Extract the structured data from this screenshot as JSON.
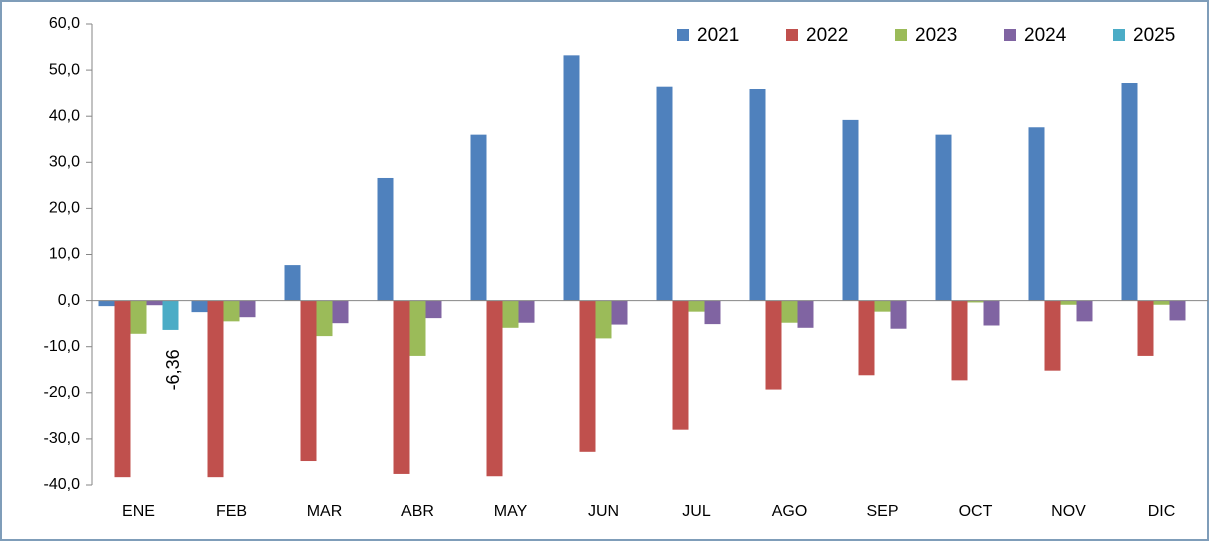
{
  "chart_data": {
    "type": "bar",
    "categories": [
      "ENE",
      "FEB",
      "MAR",
      "ABR",
      "MAY",
      "JUN",
      "JUL",
      "AGO",
      "SEP",
      "OCT",
      "NOV",
      "DIC"
    ],
    "series": [
      {
        "name": "2021",
        "color": "#4f81bd",
        "values": [
          -1.2,
          -2.5,
          7.7,
          26.6,
          36.0,
          53.2,
          46.4,
          45.9,
          39.2,
          36.0,
          37.6,
          47.2
        ]
      },
      {
        "name": "2022",
        "color": "#c0504d",
        "values": [
          -38.3,
          -38.3,
          -34.8,
          -37.6,
          -38.1,
          -32.8,
          -28.0,
          -19.3,
          -16.2,
          -17.3,
          -15.2,
          -12.0
        ]
      },
      {
        "name": "2023",
        "color": "#9bbb59",
        "values": [
          -7.2,
          -4.5,
          -7.7,
          -12.0,
          -5.9,
          -8.2,
          -2.4,
          -4.8,
          -2.4,
          -0.4,
          -0.9,
          -0.9
        ]
      },
      {
        "name": "2024",
        "color": "#8064a2",
        "values": [
          -1.0,
          -3.6,
          -4.9,
          -3.8,
          -4.8,
          -5.2,
          -5.1,
          -5.9,
          -6.1,
          -5.4,
          -4.5,
          -4.3
        ]
      },
      {
        "name": "2025",
        "color": "#4bacc6",
        "values": [
          -6.36,
          null,
          null,
          null,
          null,
          null,
          null,
          null,
          null,
          null,
          null,
          null
        ],
        "value_labels": [
          "-6,36",
          null,
          null,
          null,
          null,
          null,
          null,
          null,
          null,
          null,
          null,
          null
        ]
      }
    ],
    "ylim": [
      -40,
      60
    ],
    "yticks": [
      {
        "value": -40,
        "label": "-40,0"
      },
      {
        "value": -30,
        "label": "-30,0"
      },
      {
        "value": -20,
        "label": "-20,0"
      },
      {
        "value": -10,
        "label": "-10,0"
      },
      {
        "value": 0,
        "label": "0,0"
      },
      {
        "value": 10,
        "label": "10,0"
      },
      {
        "value": 20,
        "label": "20,0"
      },
      {
        "value": 30,
        "label": "30,0"
      },
      {
        "value": 40,
        "label": "40,0"
      },
      {
        "value": 50,
        "label": "50,0"
      },
      {
        "value": 60,
        "label": "60,0"
      }
    ],
    "legend": "top-right"
  }
}
